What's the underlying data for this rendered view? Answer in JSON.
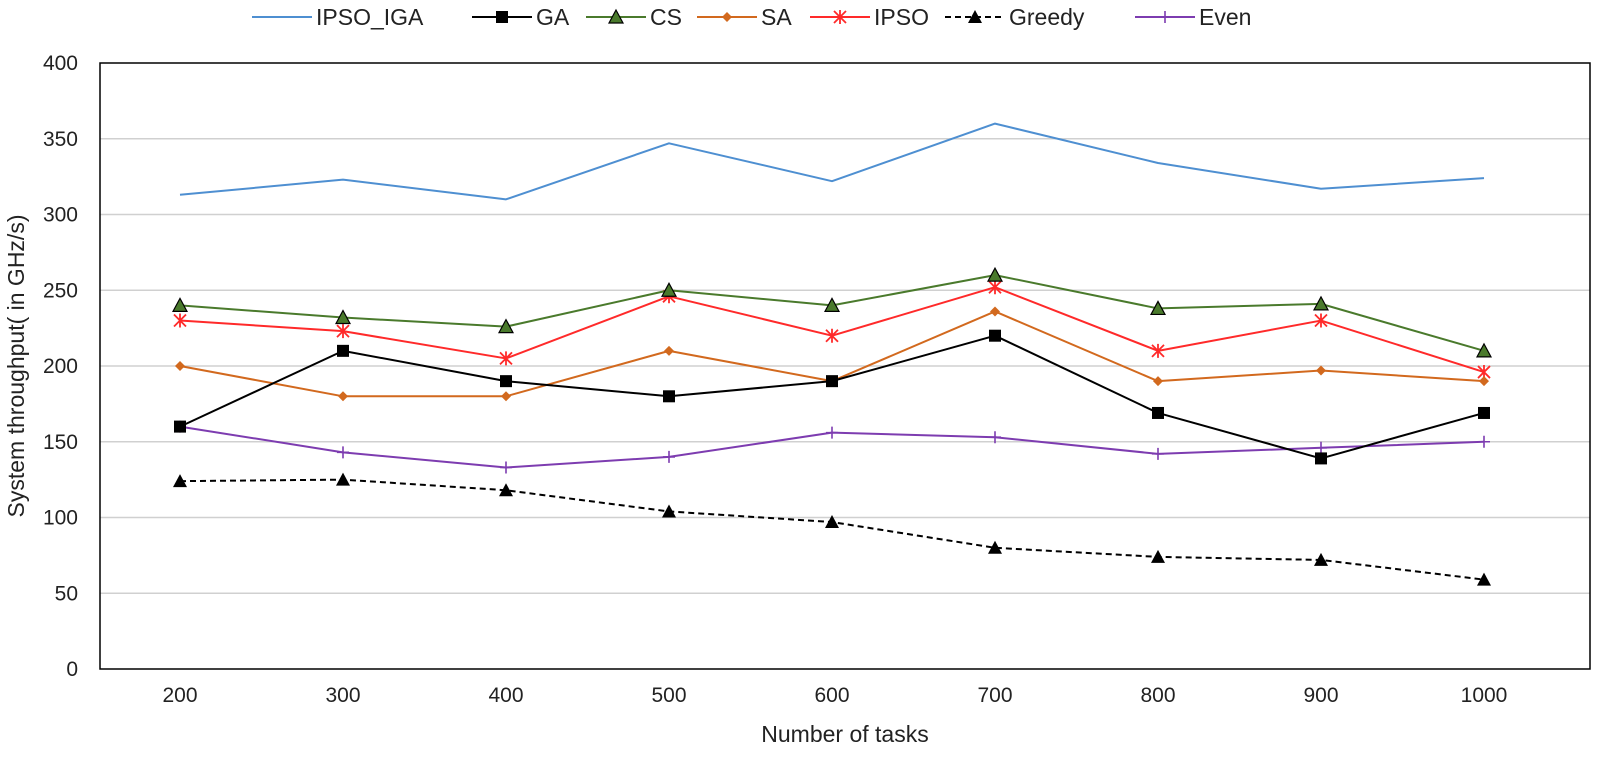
{
  "chart_data": {
    "type": "line",
    "title": "",
    "xlabel": "Number of tasks",
    "ylabel": "System throughput( in GHz/s)",
    "ylim": [
      0,
      400
    ],
    "yticks": [
      0,
      50,
      100,
      150,
      200,
      250,
      300,
      350,
      400
    ],
    "grid": true,
    "legend": "top",
    "categories": [
      "200",
      "300",
      "400",
      "500",
      "600",
      "700",
      "800",
      "900",
      "1000"
    ],
    "series": [
      {
        "name": "IPSO_IGA",
        "color": "#4e8fd1",
        "marker": "none",
        "dash": false,
        "values": [
          313,
          323,
          310,
          347,
          322,
          360,
          334,
          317,
          324
        ]
      },
      {
        "name": "GA",
        "color": "#000000",
        "marker": "square",
        "dash": false,
        "values": [
          160,
          210,
          190,
          180,
          190,
          220,
          169,
          139,
          169
        ]
      },
      {
        "name": "CS",
        "color": "#4a7a2c",
        "marker": "triangle-green",
        "dash": false,
        "values": [
          240,
          232,
          226,
          250,
          240,
          260,
          238,
          241,
          210
        ]
      },
      {
        "name": "SA",
        "color": "#d2691e",
        "marker": "diamond",
        "dash": false,
        "values": [
          200,
          180,
          180,
          210,
          190,
          236,
          190,
          197,
          190
        ]
      },
      {
        "name": "IPSO",
        "color": "#ff2a2a",
        "marker": "asterisk",
        "dash": false,
        "values": [
          230,
          223,
          205,
          246,
          220,
          252,
          210,
          230,
          196
        ]
      },
      {
        "name": "Greedy",
        "color": "#000000",
        "marker": "triangle",
        "dash": true,
        "values": [
          124,
          125,
          118,
          104,
          97,
          80,
          74,
          72,
          59
        ]
      },
      {
        "name": "Even",
        "color": "#7d3cb0",
        "marker": "plus",
        "dash": false,
        "values": [
          160,
          143,
          133,
          140,
          156,
          153,
          142,
          146,
          150
        ]
      }
    ]
  }
}
